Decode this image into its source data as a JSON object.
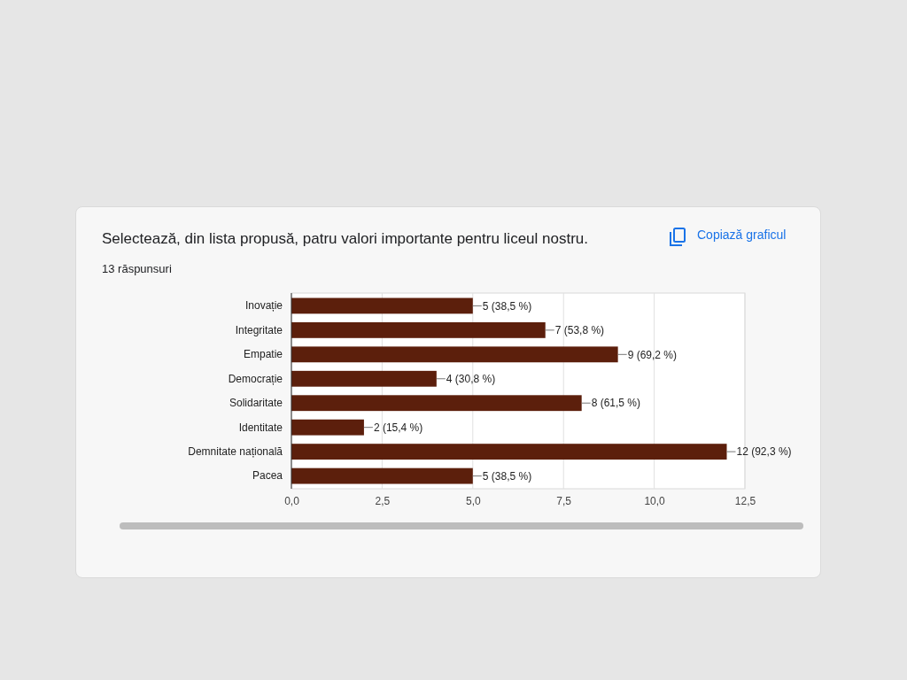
{
  "chart_data": {
    "type": "bar",
    "orientation": "horizontal",
    "title": "Selectează, din lista propusă, patru valori importante pentru liceul nostru.",
    "subtitle": "13 răspunsuri",
    "annotations": [
      "Copiază graficul"
    ],
    "categories": [
      "Inovație",
      "Integritate",
      "Empatie",
      "Democrație",
      "Solidaritate",
      "Identitate",
      "Demnitate națională",
      "Pacea"
    ],
    "values": [
      5,
      7,
      9,
      4,
      8,
      2,
      12,
      5
    ],
    "color": "#5c1f0c",
    "value_labels": [
      "5 (38,5 %)",
      "7 (53,8 %)",
      "9 (69,2 %)",
      "4 (30,8 %)",
      "8 (61,5 %)",
      "2 (15,4 %)",
      "12 (92,3 %)",
      "5 (38,5 %)"
    ],
    "xlim": [
      0,
      12.5
    ],
    "xticks": [
      {
        "value": 0,
        "label": "0,0"
      },
      {
        "value": 2.5,
        "label": "2,5"
      },
      {
        "value": 5,
        "label": "5,0"
      },
      {
        "value": 7.5,
        "label": "7,5"
      },
      {
        "value": 10,
        "label": "10,0"
      },
      {
        "value": 12.5,
        "label": "12,5"
      }
    ],
    "grid": "x"
  }
}
